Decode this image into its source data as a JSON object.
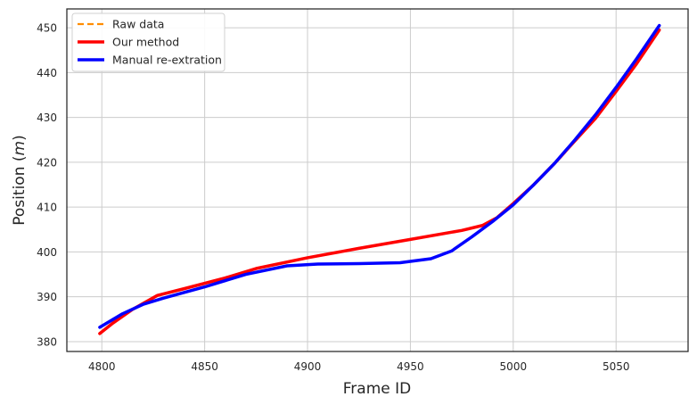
{
  "chart_data": {
    "type": "line",
    "title": "",
    "xlabel": "Frame ID",
    "ylabel_prefix": "Position (",
    "ylabel_unit": "m",
    "ylabel_suffix": ")",
    "xlim": [
      4783,
      5085
    ],
    "ylim": [
      377.8,
      454.2
    ],
    "x_ticks": [
      4800,
      4850,
      4900,
      4950,
      5000,
      5050
    ],
    "y_ticks": [
      380,
      390,
      400,
      410,
      420,
      430,
      440,
      450
    ],
    "grid": true,
    "legend_position": "top-left",
    "series": [
      {
        "name": "Raw data",
        "color": "#ff8c00",
        "style": "dashed",
        "x": [
          4799,
          4805,
          4815,
          4827,
          4840,
          4860,
          4875,
          4900,
          4925,
          4950,
          4975,
          4985,
          4992,
          5000,
          5010,
          5020,
          5030,
          5040,
          5050,
          5060,
          5071
        ],
        "y": [
          381.8,
          384,
          387.2,
          390.3,
          391.8,
          394.2,
          396.3,
          398.7,
          400.8,
          402.8,
          404.8,
          405.9,
          407.6,
          410.8,
          415.0,
          419.7,
          424.8,
          429.8,
          435.8,
          442.0,
          449.5
        ]
      },
      {
        "name": "Our method",
        "color": "#ff0000",
        "style": "solid",
        "x": [
          4799,
          4805,
          4815,
          4827,
          4840,
          4860,
          4875,
          4900,
          4925,
          4950,
          4975,
          4985,
          4992,
          5000,
          5010,
          5020,
          5030,
          5040,
          5050,
          5060,
          5071
        ],
        "y": [
          381.8,
          384,
          387.2,
          390.3,
          391.8,
          394.2,
          396.3,
          398.7,
          400.8,
          402.8,
          404.8,
          405.9,
          407.6,
          410.8,
          415.0,
          419.7,
          424.8,
          429.8,
          435.8,
          442.0,
          449.5
        ]
      },
      {
        "name": "Manual re-extration",
        "color": "#0000ff",
        "style": "solid",
        "x": [
          4799,
          4810,
          4820,
          4830,
          4850,
          4870,
          4890,
          4905,
          4925,
          4945,
          4960,
          4970,
          4980,
          4990,
          5000,
          5010,
          5020,
          5030,
          5040,
          5050,
          5060,
          5071
        ],
        "y": [
          383.2,
          386.2,
          388.3,
          389.7,
          392.2,
          395,
          396.9,
          397.3,
          397.4,
          397.6,
          398.5,
          400.2,
          403.4,
          406.8,
          410.5,
          415.0,
          419.7,
          425.0,
          430.6,
          436.7,
          443.1,
          450.5
        ]
      }
    ]
  }
}
